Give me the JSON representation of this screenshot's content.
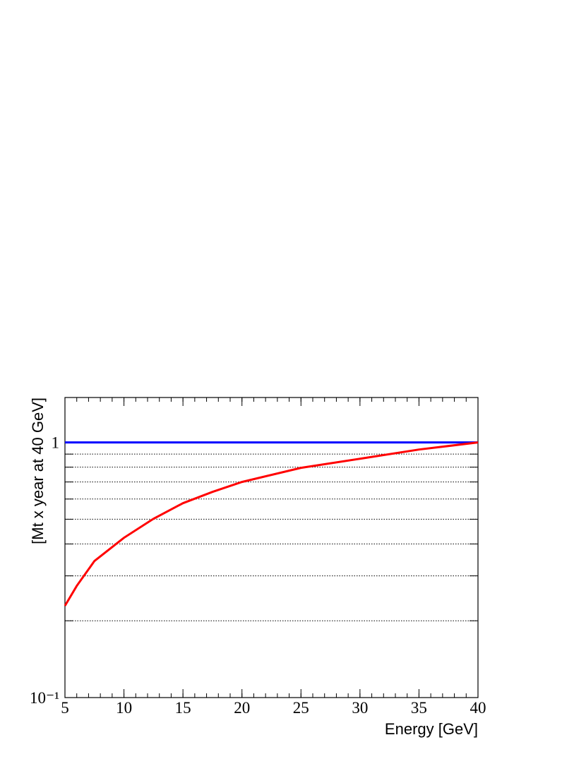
{
  "chart_data": {
    "type": "line",
    "x_label": "Energy [GeV]",
    "y_label": "[Mt x year at 40 GeV]",
    "x": [
      5,
      6,
      7.5,
      10,
      12.5,
      15,
      17.5,
      20,
      25,
      30,
      35,
      40
    ],
    "series": [
      {
        "color": "#ff0000",
        "values": [
          0.229,
          0.274,
          0.343,
          0.423,
          0.502,
          0.578,
          0.64,
          0.7,
          0.795,
          0.863,
          0.938,
          1
        ]
      },
      {
        "color": "#0000ff",
        "values": [
          1,
          1,
          1,
          1,
          1,
          1,
          1,
          1,
          1,
          1,
          1,
          1
        ]
      }
    ],
    "xlim": [
      5,
      40
    ],
    "xticks": [
      5,
      10,
      15,
      20,
      25,
      30,
      35,
      40
    ],
    "ylim": [
      0.1,
      1.5
    ],
    "yticks": [
      {
        "value": 0.1,
        "label": "10⁻¹"
      },
      1
    ],
    "yminor": [
      0.2,
      0.3,
      0.4,
      0.5,
      0.6,
      0.7,
      0.8,
      0.9
    ],
    "ylog": true,
    "grid": true
  }
}
